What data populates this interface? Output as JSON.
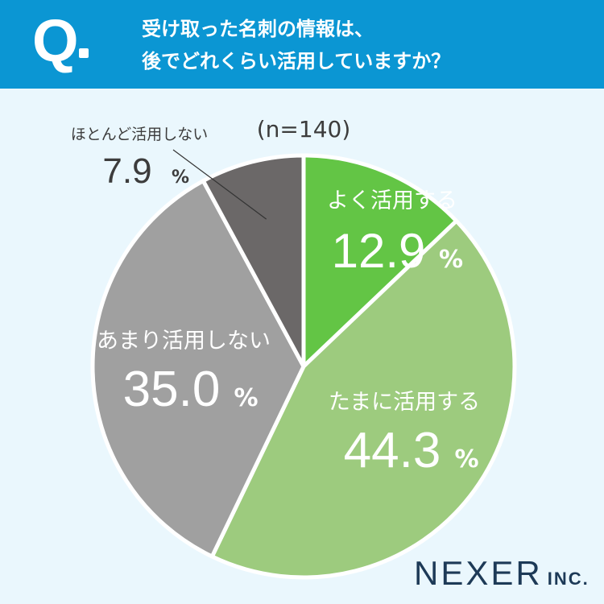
{
  "header": {
    "q_label": "Q",
    "question_line1": "受け取った名刺の情報は、",
    "question_line2": "後でどれくらい活用していますか？"
  },
  "chart_data": {
    "type": "pie",
    "title": "",
    "n_label": "(n=140)",
    "slices": [
      {
        "label": "よく活用する",
        "value": 12.9,
        "value_label": "12.9",
        "color": "#63c545"
      },
      {
        "label": "たまに活用する",
        "value": 44.3,
        "value_label": "44.3",
        "color": "#9dcb7e"
      },
      {
        "label": "あまり活用しない",
        "value": 35.0,
        "value_label": "35.0",
        "color": "#a0a0a0"
      },
      {
        "label": "ほとんど活用しない",
        "value": 7.9,
        "value_label": "7.9",
        "color": "#6b6868"
      }
    ],
    "percent_sign": "%",
    "start": "12 o'clock",
    "direction": "clockwise"
  },
  "logo": {
    "main": "NEXER",
    "sub": "INC."
  }
}
